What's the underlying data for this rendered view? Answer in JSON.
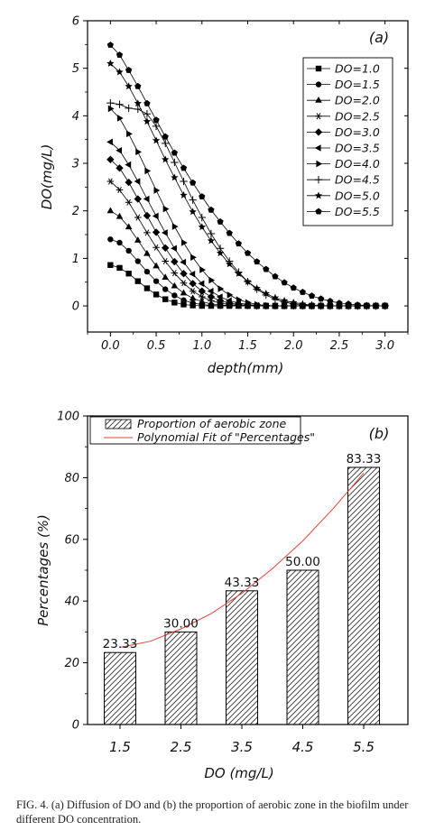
{
  "caption": "FIG. 4. (a) Diffusion of DO and (b) the proportion of aerobic zone in the biofilm under different DO concentration.",
  "colors": {
    "axis": "#000000",
    "fit": "#e0443c",
    "hatch": "#333333"
  },
  "chart_data": [
    {
      "type": "line",
      "panel_label": "(a)",
      "xlabel": "depth(mm)",
      "ylabel": "DO(mg/L)",
      "xlim": [
        -0.25,
        3.25
      ],
      "ylim": [
        -0.55,
        6
      ],
      "xticks": [
        0,
        0.5,
        1,
        1.5,
        2,
        2.5,
        3
      ],
      "xtick_labels": [
        "0.0",
        "0.5",
        "1.0",
        "1.5",
        "2.0",
        "2.5",
        "3.0"
      ],
      "yticks": [
        0,
        1,
        2,
        3,
        4,
        5,
        6
      ],
      "ytick_labels": [
        "0",
        "1",
        "2",
        "3",
        "4",
        "5",
        "6"
      ],
      "legend_position": "top-right",
      "x": [
        0,
        0.1,
        0.2,
        0.3,
        0.4,
        0.5,
        0.6,
        0.7,
        0.8,
        0.9,
        1.0,
        1.1,
        1.2,
        1.3,
        1.4,
        1.5,
        1.6,
        1.7,
        1.8,
        1.9,
        2.0,
        2.1,
        2.2,
        2.3,
        2.4,
        2.5,
        2.6,
        2.7,
        2.8,
        2.9,
        3.0
      ],
      "series": [
        {
          "name": "DO=1.0",
          "marker": "square",
          "values": [
            0.86,
            0.8,
            0.68,
            0.52,
            0.37,
            0.24,
            0.14,
            0.07,
            0.03,
            0.01,
            0,
            0,
            0,
            0,
            0,
            0,
            0,
            0,
            0,
            0,
            0,
            0,
            0,
            0,
            0,
            0,
            0,
            0,
            0,
            0,
            0
          ]
        },
        {
          "name": "DO=1.5",
          "marker": "circle",
          "values": [
            1.4,
            1.33,
            1.16,
            0.94,
            0.72,
            0.52,
            0.35,
            0.22,
            0.12,
            0.06,
            0.03,
            0.01,
            0,
            0,
            0,
            0,
            0,
            0,
            0,
            0,
            0,
            0,
            0,
            0,
            0,
            0,
            0,
            0,
            0,
            0,
            0
          ]
        },
        {
          "name": "DO=2.0",
          "marker": "triangle-up",
          "values": [
            2.0,
            1.88,
            1.66,
            1.38,
            1.1,
            0.84,
            0.6,
            0.42,
            0.27,
            0.16,
            0.09,
            0.04,
            0.02,
            0.01,
            0,
            0,
            0,
            0,
            0,
            0,
            0,
            0,
            0,
            0,
            0,
            0,
            0,
            0,
            0,
            0,
            0
          ]
        },
        {
          "name": "DO=2.5",
          "marker": "asterisk",
          "values": [
            2.62,
            2.44,
            2.18,
            1.86,
            1.54,
            1.23,
            0.94,
            0.69,
            0.48,
            0.31,
            0.19,
            0.11,
            0.06,
            0.03,
            0.01,
            0,
            0,
            0,
            0,
            0,
            0,
            0,
            0,
            0,
            0,
            0,
            0,
            0,
            0,
            0,
            0
          ]
        },
        {
          "name": "DO=3.0",
          "marker": "diamond",
          "values": [
            3.08,
            2.9,
            2.6,
            2.25,
            1.9,
            1.55,
            1.22,
            0.93,
            0.68,
            0.47,
            0.31,
            0.19,
            0.11,
            0.06,
            0.03,
            0.01,
            0,
            0,
            0,
            0,
            0,
            0,
            0,
            0,
            0,
            0,
            0,
            0,
            0,
            0,
            0
          ]
        },
        {
          "name": "DO=3.5",
          "marker": "triangle-left",
          "values": [
            3.45,
            3.27,
            2.97,
            2.62,
            2.25,
            1.89,
            1.54,
            1.21,
            0.92,
            0.67,
            0.47,
            0.31,
            0.19,
            0.11,
            0.06,
            0.03,
            0.01,
            0,
            0,
            0,
            0,
            0,
            0,
            0,
            0,
            0,
            0,
            0,
            0,
            0,
            0
          ]
        },
        {
          "name": "DO=4.0",
          "marker": "triangle-right",
          "values": [
            4.15,
            3.95,
            3.62,
            3.24,
            2.84,
            2.43,
            2.04,
            1.67,
            1.33,
            1.02,
            0.76,
            0.54,
            0.36,
            0.23,
            0.13,
            0.07,
            0.03,
            0.01,
            0,
            0,
            0,
            0,
            0,
            0,
            0,
            0,
            0,
            0,
            0,
            0,
            0
          ]
        },
        {
          "name": "DO=4.5",
          "marker": "plus",
          "values": [
            4.27,
            4.24,
            4.16,
            4.14,
            4.04,
            3.78,
            3.42,
            3.02,
            2.62,
            2.23,
            1.86,
            1.52,
            1.21,
            0.94,
            0.71,
            0.51,
            0.35,
            0.23,
            0.14,
            0.08,
            0.04,
            0.02,
            0.01,
            0,
            0,
            0,
            0,
            0,
            0,
            0,
            0
          ]
        },
        {
          "name": "DO=5.0",
          "marker": "star",
          "values": [
            5.1,
            4.92,
            4.62,
            4.26,
            3.88,
            3.48,
            3.08,
            2.7,
            2.33,
            1.98,
            1.66,
            1.37,
            1.11,
            0.88,
            0.68,
            0.51,
            0.37,
            0.26,
            0.17,
            0.11,
            0.07,
            0.04,
            0.02,
            0.01,
            0,
            0,
            0,
            0,
            0,
            0,
            0
          ]
        },
        {
          "name": "DO=5.5",
          "marker": "pentagon",
          "values": [
            5.49,
            5.28,
            4.96,
            4.62,
            4.26,
            3.91,
            3.56,
            3.22,
            2.9,
            2.59,
            2.3,
            2.02,
            1.77,
            1.53,
            1.31,
            1.11,
            0.93,
            0.77,
            0.62,
            0.49,
            0.38,
            0.29,
            0.21,
            0.15,
            0.1,
            0.06,
            0.04,
            0.02,
            0.01,
            0,
            0
          ]
        }
      ]
    },
    {
      "type": "bar",
      "panel_label": "(b)",
      "xlabel": "DO (mg/L)",
      "ylabel": "Percentages (%)",
      "categories": [
        "1.5",
        "2.5",
        "3.5",
        "4.5",
        "5.5"
      ],
      "values": [
        23.33,
        30.0,
        43.33,
        50.0,
        83.33
      ],
      "data_labels": [
        "23.33",
        "30.00",
        "43.33",
        "50.00",
        "83.33"
      ],
      "ylim": [
        0,
        100
      ],
      "yticks": [
        0,
        20,
        40,
        60,
        80,
        100
      ],
      "ytick_labels": [
        "0",
        "20",
        "40",
        "60",
        "80",
        "100"
      ],
      "legend_position": "top-left",
      "legend": [
        "Proportion of aerobic zone",
        "Polynomial Fit of \"Percentages\""
      ],
      "fit": {
        "name": "Polynomial Fit of \"Percentages\"",
        "x": [
          1.5,
          2.0,
          2.5,
          3.0,
          3.5,
          4.0,
          4.5,
          5.0,
          5.5
        ],
        "values": [
          25.0,
          27.0,
          31.0,
          36.0,
          42.5,
          50.5,
          59.5,
          70.0,
          81.5
        ]
      }
    }
  ]
}
